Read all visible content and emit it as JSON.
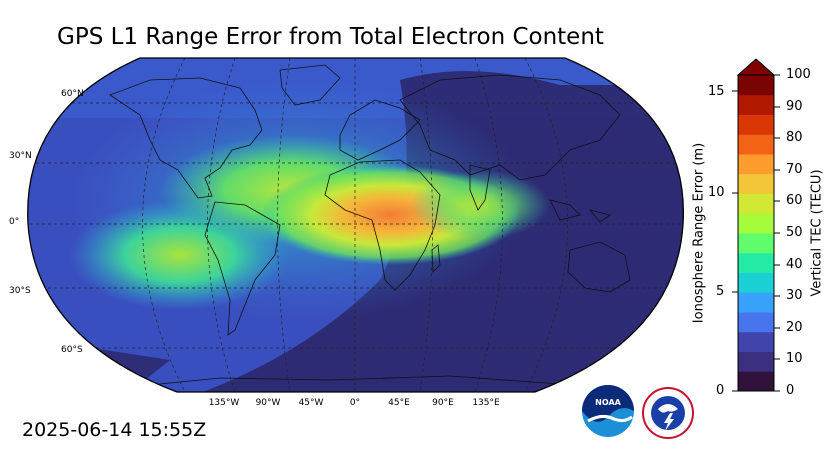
{
  "title": "GPS L1 Range Error from Total Electron Content",
  "timestamp": "2025-06-14 15:55Z",
  "map": {
    "projection": "Robinson",
    "lat_labels": [
      "60°N",
      "30°N",
      "0°",
      "30°S",
      "60°S"
    ],
    "lon_labels": [
      "135°W",
      "90°W",
      "45°W",
      "0°",
      "45°E",
      "90°E",
      "135°E"
    ],
    "ocean_background": "#3a4fbf",
    "night_shade": "#2b2466",
    "anomaly_colors": [
      "#2fc4a8",
      "#6fe25a",
      "#c8e83a",
      "#f5b63a",
      "#f47b35"
    ]
  },
  "colorbar": {
    "left_label": "Ionosphere Range Error (m)",
    "right_label": "Vertical TEC (TECU)",
    "left_ticks": [
      "15",
      "10",
      "5",
      "0"
    ],
    "right_ticks": [
      "100",
      "90",
      "80",
      "70",
      "60",
      "50",
      "40",
      "30",
      "20",
      "10",
      "0"
    ],
    "extend_arrow_color": "#800000",
    "colors": [
      "#30123b",
      "#3b2f80",
      "#4145ab",
      "#4675ed",
      "#39a2fc",
      "#1bcfd4",
      "#24eca6",
      "#61fc6c",
      "#a4fc3b",
      "#d1e834",
      "#f3c63a",
      "#fe9b2d",
      "#f36315",
      "#d93806",
      "#b11901",
      "#7a0403"
    ]
  },
  "logos": {
    "noaa": "NOAA",
    "nws": "NATIONAL WEATHER SERVICE"
  }
}
